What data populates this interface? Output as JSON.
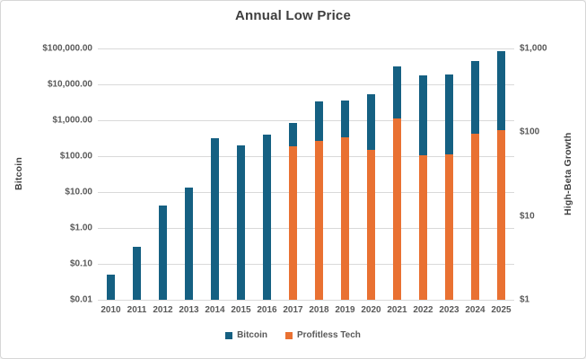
{
  "title": "Annual Low Price",
  "chart_data": {
    "type": "bar",
    "title": "Annual Low Price",
    "categories": [
      "2010",
      "2011",
      "2012",
      "2013",
      "2014",
      "2015",
      "2016",
      "2017",
      "2018",
      "2019",
      "2020",
      "2021",
      "2022",
      "2023",
      "2024",
      "2025"
    ],
    "series": [
      {
        "name": "Bitcoin",
        "axis": "left",
        "color": "#156082",
        "values": [
          0.05,
          0.3,
          4.2,
          13.2,
          320,
          195,
          390,
          820,
          3400,
          3650,
          5200,
          32000,
          17800,
          18800,
          45000,
          85000
        ]
      },
      {
        "name": "Profitless Tech",
        "axis": "right",
        "color": "#E97132",
        "values": [
          null,
          null,
          null,
          null,
          null,
          null,
          null,
          68,
          79,
          86,
          62,
          147,
          53,
          55,
          95,
          106
        ]
      }
    ],
    "left_axis": {
      "label": "Bitcoin",
      "scale": "log",
      "min": 0.01,
      "max": 100000,
      "tick_values": [
        100000,
        10000,
        1000,
        100,
        10,
        1,
        0.1,
        0.01
      ],
      "tick_labels": [
        "$100,000.00",
        "$10,000.00",
        "$1,000.00",
        "$100.00",
        "$10.00",
        "$1.00",
        "$0.10",
        "$0.01"
      ]
    },
    "right_axis": {
      "label": "High-Beta Growth",
      "scale": "log",
      "min": 1,
      "max": 1000,
      "tick_values": [
        1000,
        100,
        10,
        1
      ],
      "tick_labels": [
        "$1,000",
        "$100",
        "$10",
        "$1"
      ]
    },
    "grid": true,
    "legend_position": "bottom",
    "colors": {
      "gridline": "#d9d9d9",
      "tick_text": "#595959",
      "title_text": "#3e3e3e"
    }
  }
}
